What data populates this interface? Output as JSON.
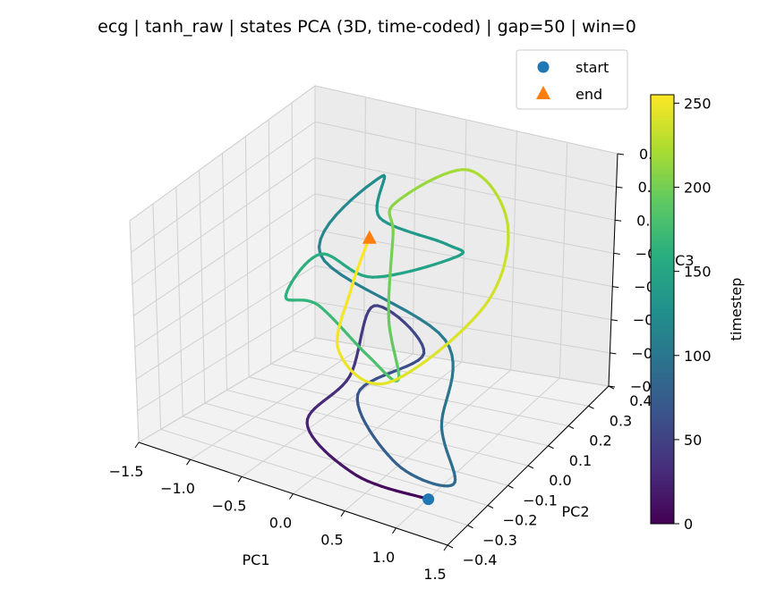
{
  "chart_data": {
    "type": "line",
    "title": "ecg | tanh_raw | states PCA (3D, time-coded) | gap=50 | win=0",
    "xlabel": "PC1",
    "ylabel": "PC2",
    "zlabel": "PC3",
    "xlim": [
      -1.5,
      1.5
    ],
    "ylim": [
      -0.4,
      0.4
    ],
    "zlim": [
      -0.5,
      0.2
    ],
    "x_ticks": [
      "−1.5",
      "−1.0",
      "−0.5",
      "0.0",
      "0.5",
      "1.0",
      "1.5"
    ],
    "y_ticks": [
      "−0.4",
      "−0.3",
      "−0.2",
      "−0.1",
      "0.0",
      "0.1",
      "0.2",
      "0.3",
      "0.4"
    ],
    "z_ticks": [
      "−0.5",
      "−0.4",
      "−0.3",
      "−0.2",
      "−0.1",
      "0.0",
      "0.1",
      "0.2"
    ],
    "z_ticks_visible": [
      "−0.5",
      "−0.4",
      "−0.3",
      "−0.2",
      "−0.1",
      "0.0",
      "0.1",
      "0.2",
      "0.3"
    ],
    "grid": true,
    "legend": {
      "placement": "top-right",
      "entries": [
        {
          "label": "start",
          "marker": "circle",
          "color": "#1f77b4"
        },
        {
          "label": "end",
          "marker": "triangle",
          "color": "#ff7f0e"
        }
      ]
    },
    "colorbar": {
      "label": "timestep",
      "colormap": "viridis",
      "range": [
        0,
        255
      ],
      "ticks": [
        "0",
        "50",
        "100",
        "150",
        "200",
        "250"
      ]
    },
    "trajectory_keyframes": [
      {
        "t": 0,
        "x": 1.1,
        "y": -0.3,
        "z": -0.44
      },
      {
        "t": 12,
        "x": 0.4,
        "y": -0.3,
        "z": -0.44
      },
      {
        "t": 25,
        "x": -0.25,
        "y": -0.22,
        "z": -0.38
      },
      {
        "t": 38,
        "x": -0.2,
        "y": -0.05,
        "z": -0.3
      },
      {
        "t": 48,
        "x": -0.5,
        "y": 0.2,
        "z": -0.22
      },
      {
        "t": 58,
        "x": 0.2,
        "y": 0.1,
        "z": -0.25
      },
      {
        "t": 68,
        "x": 0.2,
        "y": -0.2,
        "z": -0.25
      },
      {
        "t": 80,
        "x": 0.9,
        "y": -0.35,
        "z": -0.33
      },
      {
        "t": 88,
        "x": 1.3,
        "y": -0.28,
        "z": -0.38
      },
      {
        "t": 95,
        "x": 0.8,
        "y": -0.1,
        "z": -0.33
      },
      {
        "t": 105,
        "x": 0.3,
        "y": 0.15,
        "z": -0.22
      },
      {
        "t": 115,
        "x": -0.7,
        "y": 0.05,
        "z": -0.02
      },
      {
        "t": 125,
        "x": -0.85,
        "y": 0.4,
        "z": 0.05
      },
      {
        "t": 133,
        "x": -0.55,
        "y": 0.25,
        "z": 0.02
      },
      {
        "t": 140,
        "x": 0.2,
        "y": 0.2,
        "z": 0.04
      },
      {
        "t": 145,
        "x": 0.1,
        "y": 0.3,
        "z": -0.05
      },
      {
        "t": 150,
        "x": -0.3,
        "y": 0.1,
        "z": -0.07
      },
      {
        "t": 158,
        "x": -0.7,
        "y": 0.05,
        "z": -0.02
      },
      {
        "t": 163,
        "x": -0.5,
        "y": -0.2,
        "z": -0.02
      },
      {
        "t": 170,
        "x": -0.4,
        "y": -0.1,
        "z": -0.08
      },
      {
        "t": 180,
        "x": 0.3,
        "y": -0.2,
        "z": -0.12
      },
      {
        "t": 188,
        "x": 0.7,
        "y": -0.25,
        "z": -0.13
      },
      {
        "t": 195,
        "x": 0.5,
        "y": -0.2,
        "z": 0.02
      },
      {
        "t": 203,
        "x": -0.1,
        "y": 0.1,
        "z": 0.08
      },
      {
        "t": 210,
        "x": -0.4,
        "y": 0.25,
        "z": 0.08
      },
      {
        "t": 222,
        "x": 0.2,
        "y": 0.3,
        "z": 0.22
      },
      {
        "t": 232,
        "x": 0.8,
        "y": 0.2,
        "z": 0.16
      },
      {
        "t": 240,
        "x": 1.0,
        "y": 0.0,
        "z": 0.02
      },
      {
        "t": 245,
        "x": 0.6,
        "y": -0.25,
        "z": -0.15
      },
      {
        "t": 249,
        "x": -0.2,
        "y": -0.1,
        "z": -0.2
      },
      {
        "t": 252,
        "x": -0.5,
        "y": 0.1,
        "z": -0.12
      },
      {
        "t": 255,
        "x": -0.65,
        "y": 0.25,
        "z": -0.05
      }
    ],
    "start": {
      "t": 0,
      "x": 1.1,
      "y": -0.3,
      "z": -0.44
    },
    "end": {
      "t": 255,
      "x": -0.65,
      "y": 0.25,
      "z": -0.05
    }
  }
}
